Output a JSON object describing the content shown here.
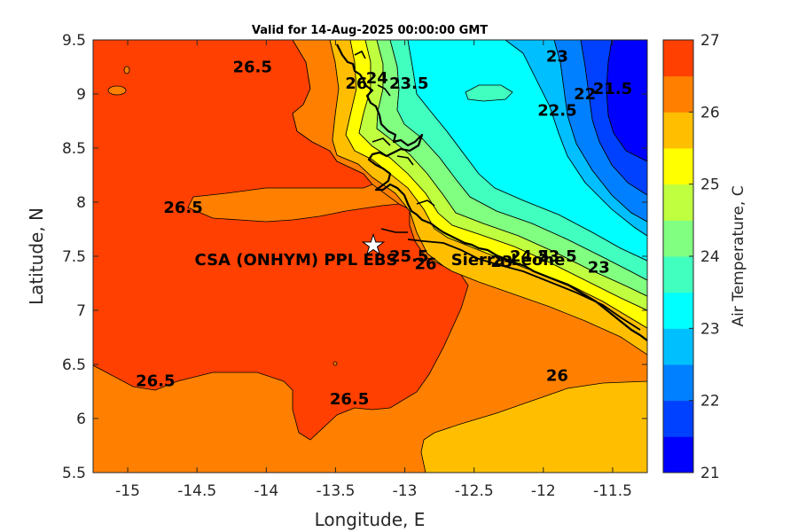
{
  "title": "Valid for 14-Aug-2025 00:00:00 GMT",
  "map": {
    "xlabel": "Longitude, E",
    "ylabel": "Latitude, N",
    "xlim": [
      -15.25,
      -11.25
    ],
    "ylim": [
      5.5,
      9.5
    ],
    "xticks": [
      "-15",
      "-14.5",
      "-14",
      "-13.5",
      "-13",
      "-12.5",
      "-12",
      "-11.5"
    ],
    "xtick_values": [
      -15,
      -14.5,
      -14,
      -13.5,
      -13,
      -12.5,
      -12,
      -11.5
    ],
    "yticks": [
      "5.5",
      "6",
      "6.5",
      "7",
      "7.5",
      "8",
      "8.5",
      "9",
      "9.5"
    ],
    "ytick_values": [
      5.5,
      6,
      6.5,
      7,
      7.5,
      8,
      8.5,
      9,
      9.5
    ],
    "site": {
      "label": "CSA (ONHYM) PPL EBS",
      "lon": -13.23,
      "lat": 7.6
    },
    "country_label": {
      "text": "Sierra Leone",
      "lon": -12.2,
      "lat": 7.5
    },
    "contour_labels": [
      {
        "text": "26.5",
        "lon": -14.1,
        "lat": 9.2
      },
      {
        "text": "26.5",
        "lon": -14.6,
        "lat": 7.9
      },
      {
        "text": "26.5",
        "lon": -14.8,
        "lat": 6.3
      },
      {
        "text": "26.5",
        "lon": -13.4,
        "lat": 6.13
      },
      {
        "text": "26",
        "lon": -13.35,
        "lat": 9.05
      },
      {
        "text": "26",
        "lon": -12.85,
        "lat": 7.38
      },
      {
        "text": "26",
        "lon": -11.9,
        "lat": 6.35
      },
      {
        "text": "25.5",
        "lon": -12.97,
        "lat": 7.45
      },
      {
        "text": "23.5",
        "lon": -12.97,
        "lat": 9.05
      },
      {
        "text": "23",
        "lon": -11.9,
        "lat": 9.3
      },
      {
        "text": "23",
        "lon": -11.6,
        "lat": 7.35
      },
      {
        "text": "22.5",
        "lon": -11.9,
        "lat": 8.8
      },
      {
        "text": "22",
        "lon": -11.7,
        "lat": 8.95
      },
      {
        "text": "21.5",
        "lon": -11.5,
        "lat": 9.0
      },
      {
        "text": "24",
        "lon": -13.2,
        "lat": 9.1
      },
      {
        "text": "24.5",
        "lon": -12.1,
        "lat": 7.45
      },
      {
        "text": "23.5",
        "lon": -11.9,
        "lat": 7.45
      },
      {
        "text": "23",
        "lon": -12.3,
        "lat": 7.4
      }
    ]
  },
  "colorbar": {
    "label": "Air Temperature, C",
    "ticks": [
      "21",
      "22",
      "23",
      "24",
      "25",
      "26",
      "27"
    ],
    "tick_values": [
      21,
      22,
      23,
      24,
      25,
      26,
      27
    ],
    "range": [
      21,
      27
    ],
    "levels": [
      {
        "from": 21.0,
        "to": 21.5,
        "color": "#0000ff"
      },
      {
        "from": 21.5,
        "to": 22.0,
        "color": "#0040ff"
      },
      {
        "from": 22.0,
        "to": 22.5,
        "color": "#0080ff"
      },
      {
        "from": 22.5,
        "to": 23.0,
        "color": "#00bfff"
      },
      {
        "from": 23.0,
        "to": 23.5,
        "color": "#00ffff"
      },
      {
        "from": 23.5,
        "to": 24.0,
        "color": "#40ffbf"
      },
      {
        "from": 24.0,
        "to": 24.5,
        "color": "#80ff80"
      },
      {
        "from": 24.5,
        "to": 25.0,
        "color": "#bfff40"
      },
      {
        "from": 25.0,
        "to": 25.5,
        "color": "#ffff00"
      },
      {
        "from": 25.5,
        "to": 26.0,
        "color": "#ffbf00"
      },
      {
        "from": 26.0,
        "to": 26.5,
        "color": "#ff8000"
      },
      {
        "from": 26.5,
        "to": 27.0,
        "color": "#ff4000"
      }
    ]
  }
}
